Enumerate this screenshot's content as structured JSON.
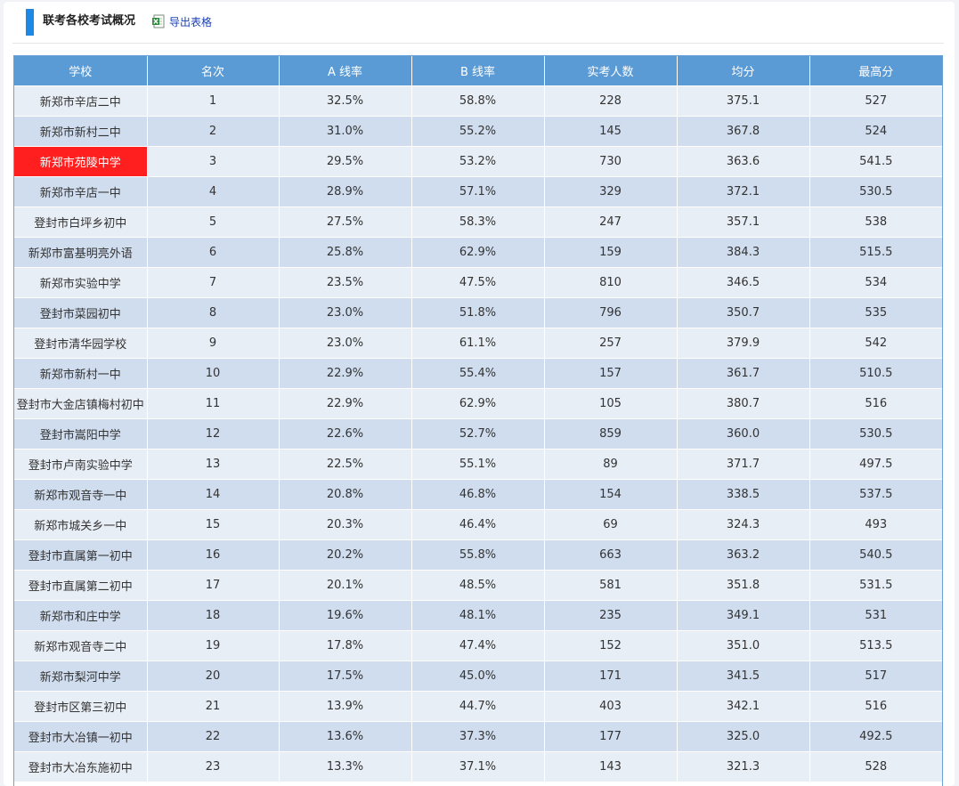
{
  "header": {
    "title": "联考各校考试概况",
    "export_label": "导出表格",
    "export_icon": "excel-icon"
  },
  "colors": {
    "accent": "#1e88e5",
    "table_header": "#5b9bd5",
    "row_light": "#e8eef6",
    "row_dark": "#d0ddef",
    "highlight": "#ff1f1f",
    "link": "#1a3fb3"
  },
  "table": {
    "columns": [
      "学校",
      "名次",
      "A 线率",
      "B 线率",
      "实考人数",
      "均分",
      "最高分"
    ],
    "highlighted_school": "新郑市苑陵中学",
    "rows": [
      [
        "新郑市辛店二中",
        "1",
        "32.5%",
        "58.8%",
        "228",
        "375.1",
        "527"
      ],
      [
        "新郑市新村二中",
        "2",
        "31.0%",
        "55.2%",
        "145",
        "367.8",
        "524"
      ],
      [
        "新郑市苑陵中学",
        "3",
        "29.5%",
        "53.2%",
        "730",
        "363.6",
        "541.5"
      ],
      [
        "新郑市辛店一中",
        "4",
        "28.9%",
        "57.1%",
        "329",
        "372.1",
        "530.5"
      ],
      [
        "登封市白坪乡初中",
        "5",
        "27.5%",
        "58.3%",
        "247",
        "357.1",
        "538"
      ],
      [
        "新郑市富基明亮外语",
        "6",
        "25.8%",
        "62.9%",
        "159",
        "384.3",
        "515.5"
      ],
      [
        "新郑市实验中学",
        "7",
        "23.5%",
        "47.5%",
        "810",
        "346.5",
        "534"
      ],
      [
        "登封市菜园初中",
        "8",
        "23.0%",
        "51.8%",
        "796",
        "350.7",
        "535"
      ],
      [
        "登封市清华园学校",
        "9",
        "23.0%",
        "61.1%",
        "257",
        "379.9",
        "542"
      ],
      [
        "新郑市新村一中",
        "10",
        "22.9%",
        "55.4%",
        "157",
        "361.7",
        "510.5"
      ],
      [
        "登封市大金店镇梅村初中",
        "11",
        "22.9%",
        "62.9%",
        "105",
        "380.7",
        "516"
      ],
      [
        "登封市嵩阳中学",
        "12",
        "22.6%",
        "52.7%",
        "859",
        "360.0",
        "530.5"
      ],
      [
        "登封市卢南实验中学",
        "13",
        "22.5%",
        "55.1%",
        "89",
        "371.7",
        "497.5"
      ],
      [
        "新郑市观音寺一中",
        "14",
        "20.8%",
        "46.8%",
        "154",
        "338.5",
        "537.5"
      ],
      [
        "新郑市城关乡一中",
        "15",
        "20.3%",
        "46.4%",
        "69",
        "324.3",
        "493"
      ],
      [
        "登封市直属第一初中",
        "16",
        "20.2%",
        "55.8%",
        "663",
        "363.2",
        "540.5"
      ],
      [
        "登封市直属第二初中",
        "17",
        "20.1%",
        "48.5%",
        "581",
        "351.8",
        "531.5"
      ],
      [
        "新郑市和庄中学",
        "18",
        "19.6%",
        "48.1%",
        "235",
        "349.1",
        "531"
      ],
      [
        "新郑市观音寺二中",
        "19",
        "17.8%",
        "47.4%",
        "152",
        "351.0",
        "513.5"
      ],
      [
        "新郑市梨河中学",
        "20",
        "17.5%",
        "45.0%",
        "171",
        "341.5",
        "517"
      ],
      [
        "登封市区第三初中",
        "21",
        "13.9%",
        "44.7%",
        "403",
        "342.1",
        "516"
      ],
      [
        "登封市大冶镇一初中",
        "22",
        "13.6%",
        "37.3%",
        "177",
        "325.0",
        "492.5"
      ],
      [
        "登封市大冶东施初中",
        "23",
        "13.3%",
        "37.1%",
        "143",
        "321.3",
        "528"
      ]
    ]
  }
}
